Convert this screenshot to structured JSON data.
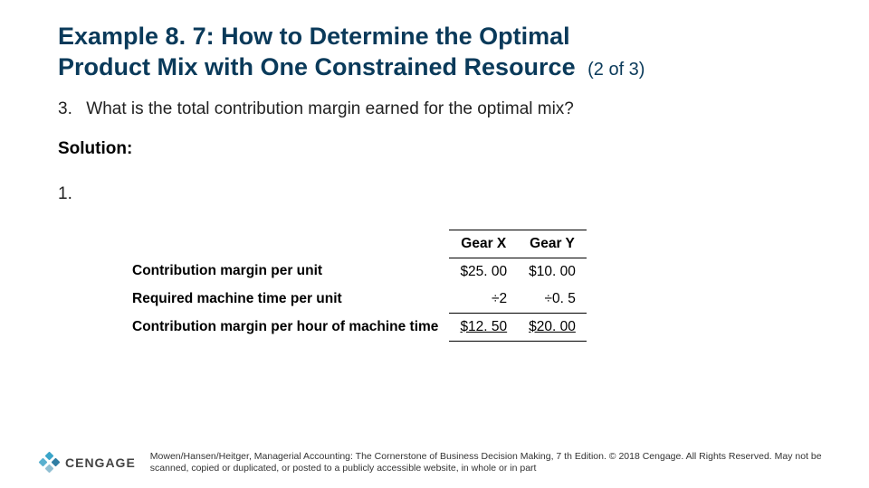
{
  "title": {
    "line1": "Example 8. 7: How to Determine the Optimal",
    "line2_main": "Product Mix with One Constrained Resource",
    "pager": "(2 of 3)"
  },
  "question": {
    "number": "3.",
    "text": "What is the total contribution margin earned for the optimal mix?"
  },
  "solution_label": "Solution:",
  "list_marker": "1.",
  "table": {
    "col_headers": {
      "blank": "",
      "x": "Gear X",
      "y": "Gear Y"
    },
    "rows": [
      {
        "label": "Contribution margin per unit",
        "x": "$25. 00",
        "y": "$10. 00"
      },
      {
        "label": "Required machine time per unit",
        "x": "÷2",
        "y": "÷0. 5"
      },
      {
        "label": "Contribution margin per hour of machine time",
        "x": "$12. 50",
        "y": "$20. 00",
        "final": true
      }
    ]
  },
  "footer": {
    "brand": "CENGAGE",
    "copyright": "Mowen/Hansen/Heitger, Managerial Accounting: The Cornerstone of Business Decision Making, 7 th Edition. © 2018 Cengage. All Rights Reserved. May not be scanned, copied or duplicated, or posted to a publicly accessible website, in whole or in part"
  },
  "colors": {
    "title": "#0a3a5a",
    "text": "#222222",
    "border": "#000000",
    "background": "#ffffff"
  }
}
